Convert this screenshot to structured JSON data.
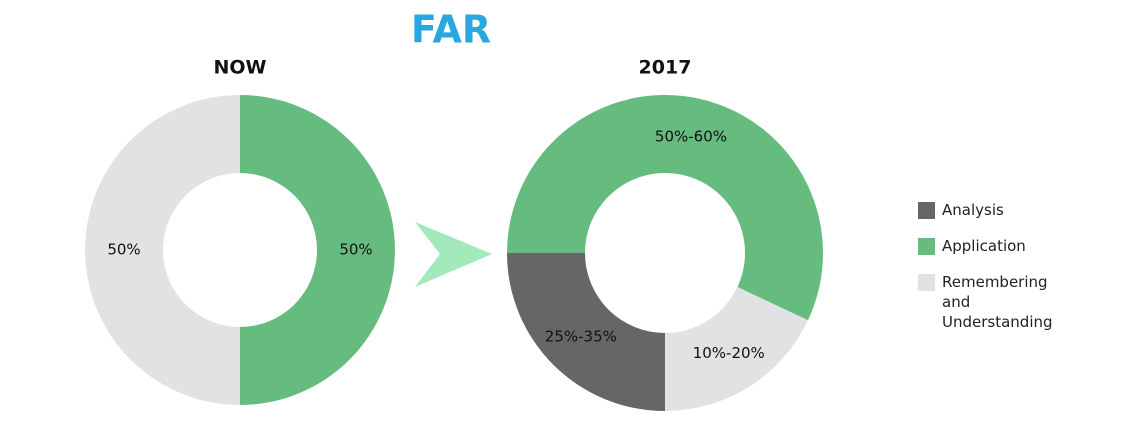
{
  "title": "FAR",
  "chart_data": [
    {
      "type": "donut",
      "title": "NOW",
      "categories": [
        "Application",
        "Remembering and Understanding"
      ],
      "values": [
        50,
        50
      ],
      "value_labels": [
        "50%",
        "50%"
      ],
      "colors": [
        "#66bb7f",
        "#e1e2e3"
      ]
    },
    {
      "type": "donut",
      "title": "2017",
      "categories": [
        "Analysis",
        "Application",
        "Remembering and Understanding"
      ],
      "values": [
        25,
        57,
        18
      ],
      "value_labels": [
        "25%-35%",
        "50%-60%",
        "10%-20%"
      ],
      "colors": [
        "#656667",
        "#66bb7f",
        "#e1e2e3"
      ]
    }
  ]
}
